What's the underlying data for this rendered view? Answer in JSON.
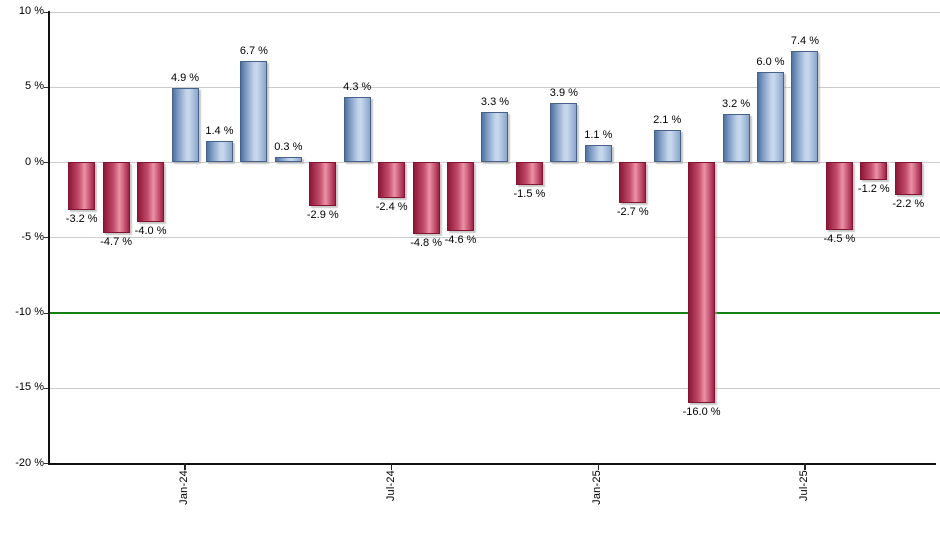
{
  "chart_data": {
    "type": "bar",
    "title": "",
    "xlabel": "",
    "ylabel": "",
    "values": [
      -3.2,
      -4.7,
      -4.0,
      4.9,
      1.4,
      6.7,
      0.3,
      -2.9,
      4.3,
      -2.4,
      -4.8,
      -4.6,
      3.3,
      -1.5,
      3.9,
      1.1,
      -2.7,
      2.1,
      -16.0,
      3.2,
      6.0,
      7.4,
      -4.5,
      -1.2,
      -2.2
    ],
    "value_label_suffix": " %",
    "ylim": [
      -20,
      10
    ],
    "yticks": [
      10,
      5,
      0,
      -5,
      -10,
      -15,
      -20
    ],
    "ytick_labels": [
      "10 %",
      "5 %",
      "0 %",
      "-5 %",
      "-10 %",
      "-15 %",
      "-20 %"
    ],
    "xticks": [
      {
        "bar_index": 3,
        "label": "Jan-24"
      },
      {
        "bar_index": 9,
        "label": "Jul-24"
      },
      {
        "bar_index": 15,
        "label": "Jan-25"
      },
      {
        "bar_index": 21,
        "label": "Jul-25"
      }
    ],
    "reference_line": {
      "value": -10,
      "color": "#128012"
    },
    "grid": true,
    "legend": null,
    "colors": {
      "background": "#ffffff",
      "gridline": "#cccccc",
      "axis": "#111111",
      "label_text": "#000000",
      "positive_gradient": [
        "#4f72a0",
        "#7d9ac2",
        "#c2d3ea",
        "#c8d8ee",
        "#8ba6c9"
      ],
      "positive_border": "#466288",
      "negative_gradient": [
        "#8f1737",
        "#c24e6d",
        "#ec92a6",
        "#a22248"
      ],
      "negative_border": "#811433"
    }
  }
}
